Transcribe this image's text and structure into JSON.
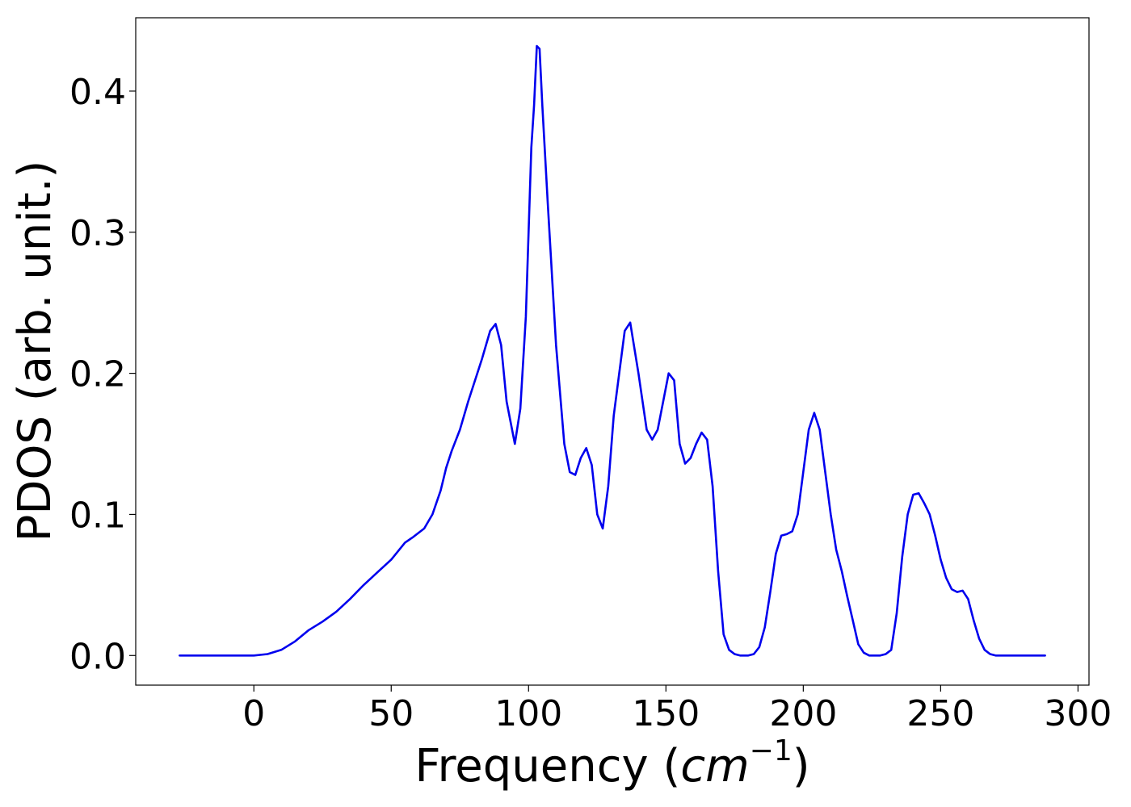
{
  "chart_data": {
    "type": "line",
    "xlabel_main": "Frequency (",
    "xlabel_var": "cm",
    "xlabel_sup": "−1",
    "xlabel_close": ")",
    "ylabel": "PDOS (arb. unit.)",
    "xlim": [
      -43,
      304
    ],
    "ylim": [
      -0.021,
      0.452
    ],
    "xticks": [
      0,
      50,
      100,
      150,
      200,
      250,
      300
    ],
    "yticks": [
      0.0,
      0.1,
      0.2,
      0.3,
      0.4
    ],
    "xtick_labels": [
      "0",
      "50",
      "100",
      "150",
      "200",
      "250",
      "300"
    ],
    "ytick_labels": [
      "0.0",
      "0.1",
      "0.2",
      "0.3",
      "0.4"
    ],
    "grid": false,
    "legend": "none",
    "series": [
      {
        "color": "#0000ee",
        "x": [
          -27,
          -10,
          0,
          5,
          10,
          15,
          20,
          25,
          30,
          35,
          40,
          45,
          50,
          55,
          58,
          62,
          65,
          68,
          70,
          72,
          75,
          78,
          80,
          83,
          86,
          88,
          90,
          92,
          94,
          95,
          97,
          99,
          100,
          101,
          102,
          103,
          104,
          105,
          107,
          110,
          113,
          115,
          117,
          119,
          121,
          123,
          125,
          127,
          129,
          131,
          133,
          135,
          137,
          140,
          143,
          145,
          147,
          149,
          151,
          153,
          155,
          157,
          159,
          161,
          163,
          165,
          167,
          169,
          171,
          173,
          175,
          177,
          180,
          182,
          184,
          186,
          188,
          190,
          192,
          194,
          196,
          198,
          200,
          202,
          204,
          206,
          208,
          210,
          212,
          214,
          216,
          218,
          220,
          222,
          224,
          226,
          228,
          230,
          232,
          234,
          236,
          238,
          240,
          242,
          244,
          246,
          248,
          250,
          252,
          254,
          256,
          258,
          260,
          262,
          264,
          266,
          268,
          270,
          280,
          288
        ],
        "values": [
          0.0,
          0.0,
          0.0,
          0.001,
          0.004,
          0.01,
          0.018,
          0.024,
          0.031,
          0.04,
          0.05,
          0.059,
          0.068,
          0.08,
          0.084,
          0.09,
          0.1,
          0.117,
          0.133,
          0.145,
          0.16,
          0.18,
          0.192,
          0.21,
          0.23,
          0.235,
          0.22,
          0.18,
          0.16,
          0.15,
          0.175,
          0.24,
          0.3,
          0.36,
          0.39,
          0.432,
          0.43,
          0.39,
          0.32,
          0.22,
          0.15,
          0.13,
          0.128,
          0.14,
          0.147,
          0.135,
          0.1,
          0.09,
          0.12,
          0.17,
          0.2,
          0.23,
          0.236,
          0.2,
          0.16,
          0.153,
          0.16,
          0.18,
          0.2,
          0.195,
          0.15,
          0.136,
          0.14,
          0.15,
          0.158,
          0.153,
          0.12,
          0.06,
          0.015,
          0.004,
          0.001,
          0.0,
          0.0,
          0.001,
          0.006,
          0.02,
          0.045,
          0.072,
          0.085,
          0.086,
          0.088,
          0.1,
          0.13,
          0.16,
          0.172,
          0.16,
          0.13,
          0.1,
          0.075,
          0.06,
          0.042,
          0.025,
          0.008,
          0.002,
          0.0,
          0.0,
          0.0,
          0.001,
          0.004,
          0.03,
          0.07,
          0.1,
          0.114,
          0.115,
          0.108,
          0.1,
          0.085,
          0.068,
          0.055,
          0.047,
          0.045,
          0.046,
          0.04,
          0.025,
          0.012,
          0.004,
          0.001,
          0.0,
          0.0,
          0.0
        ]
      }
    ]
  }
}
